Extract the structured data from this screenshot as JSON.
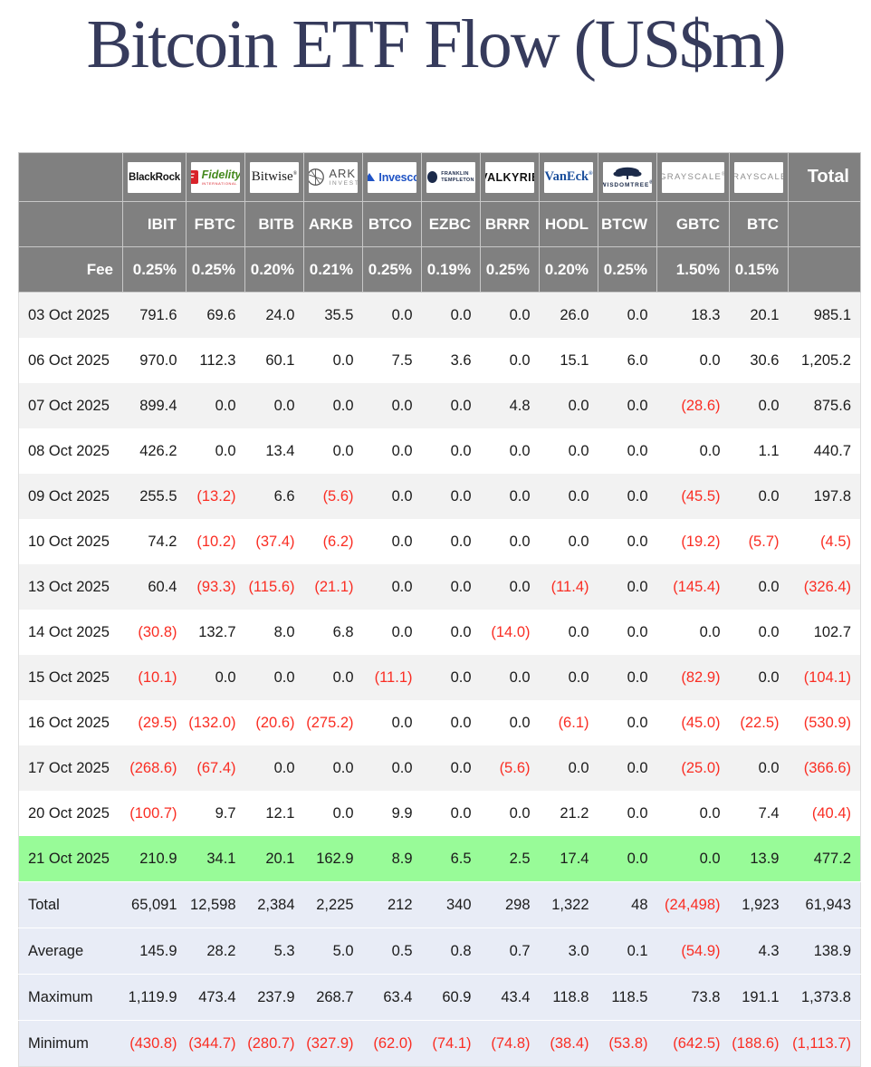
{
  "title": "Bitcoin ETF Flow (US$m)",
  "chart_data": {
    "type": "table",
    "title": "Bitcoin ETF Flow (US$m)",
    "fee_label": "Fee",
    "total_label": "Total",
    "columns": [
      {
        "ticker": "IBIT",
        "fee": "0.25%",
        "provider": "BlackRock",
        "logo": {
          "kind": "blackrock",
          "text": "BlackRock",
          "color": "#151515"
        }
      },
      {
        "ticker": "FBTC",
        "fee": "0.25%",
        "provider": "Fidelity",
        "logo": {
          "kind": "fidelity",
          "icon": "F",
          "icon_color": "#d9222a",
          "text": "Fidelity",
          "text_color": "#458a1e",
          "mark": "™",
          "sub": "INTERNATIONAL",
          "sub_color": "#d9222a"
        }
      },
      {
        "ticker": "BITB",
        "fee": "0.20%",
        "provider": "Bitwise",
        "logo": {
          "kind": "bitwise",
          "text": "Bitwise",
          "mark": "®",
          "color": "#1c1c1c"
        }
      },
      {
        "ticker": "ARKB",
        "fee": "0.21%",
        "provider": "ARK Invest",
        "logo": {
          "kind": "ark",
          "text": "ARK",
          "color": "#4f4f4f",
          "sub": "INVEST",
          "sub_color": "#8a8a8a"
        }
      },
      {
        "ticker": "BTCO",
        "fee": "0.25%",
        "provider": "Invesco",
        "logo": {
          "kind": "invesco",
          "text": "Invesco",
          "color": "#1f53c5"
        }
      },
      {
        "ticker": "EZBC",
        "fee": "0.19%",
        "provider": "Franklin Templeton",
        "logo": {
          "kind": "franklin",
          "lines": [
            "FRANKLIN",
            "TEMPLETON"
          ],
          "color": "#1b2a4a"
        }
      },
      {
        "ticker": "BRRR",
        "fee": "0.25%",
        "provider": "Valkyrie",
        "logo": {
          "kind": "valkyrie",
          "text": "VALKYRIE",
          "color": "#101010"
        }
      },
      {
        "ticker": "HODL",
        "fee": "0.20%",
        "provider": "VanEck",
        "logo": {
          "kind": "vaneck",
          "text": "VanEck",
          "mark": "®",
          "color": "#1b4f9c"
        }
      },
      {
        "ticker": "BTCW",
        "fee": "0.25%",
        "provider": "WisdomTree",
        "logo": {
          "kind": "wisdomtree",
          "text": "WISDOMTREE",
          "mark": "®",
          "color": "#1c2b4a"
        }
      },
      {
        "ticker": "GBTC",
        "fee": "1.50%",
        "provider": "Grayscale",
        "logo": {
          "kind": "grayscale",
          "text": "GRAYSCALE",
          "mark": "®",
          "color": "#8e8e8e"
        }
      },
      {
        "ticker": "BTC",
        "fee": "0.15%",
        "provider": "Grayscale",
        "logo": {
          "kind": "grayscale",
          "text": "GRAYSCALE",
          "mark": "®",
          "color": "#8e8e8e"
        }
      }
    ],
    "rows": [
      {
        "date": "03 Oct 2025",
        "highlight": false,
        "values": [
          "791.6",
          "69.6",
          "24.0",
          "35.5",
          "0.0",
          "0.0",
          "0.0",
          "26.0",
          "0.0",
          "18.3",
          "20.1",
          "985.1"
        ]
      },
      {
        "date": "06 Oct 2025",
        "highlight": false,
        "values": [
          "970.0",
          "112.3",
          "60.1",
          "0.0",
          "7.5",
          "3.6",
          "0.0",
          "15.1",
          "6.0",
          "0.0",
          "30.6",
          "1,205.2"
        ]
      },
      {
        "date": "07 Oct 2025",
        "highlight": false,
        "values": [
          "899.4",
          "0.0",
          "0.0",
          "0.0",
          "0.0",
          "0.0",
          "4.8",
          "0.0",
          "0.0",
          "(28.6)",
          "0.0",
          "875.6"
        ]
      },
      {
        "date": "08 Oct 2025",
        "highlight": false,
        "values": [
          "426.2",
          "0.0",
          "13.4",
          "0.0",
          "0.0",
          "0.0",
          "0.0",
          "0.0",
          "0.0",
          "0.0",
          "1.1",
          "440.7"
        ]
      },
      {
        "date": "09 Oct 2025",
        "highlight": false,
        "values": [
          "255.5",
          "(13.2)",
          "6.6",
          "(5.6)",
          "0.0",
          "0.0",
          "0.0",
          "0.0",
          "0.0",
          "(45.5)",
          "0.0",
          "197.8"
        ]
      },
      {
        "date": "10 Oct 2025",
        "highlight": false,
        "values": [
          "74.2",
          "(10.2)",
          "(37.4)",
          "(6.2)",
          "0.0",
          "0.0",
          "0.0",
          "0.0",
          "0.0",
          "(19.2)",
          "(5.7)",
          "(4.5)"
        ]
      },
      {
        "date": "13 Oct 2025",
        "highlight": false,
        "values": [
          "60.4",
          "(93.3)",
          "(115.6)",
          "(21.1)",
          "0.0",
          "0.0",
          "0.0",
          "(11.4)",
          "0.0",
          "(145.4)",
          "0.0",
          "(326.4)"
        ]
      },
      {
        "date": "14 Oct 2025",
        "highlight": false,
        "values": [
          "(30.8)",
          "132.7",
          "8.0",
          "6.8",
          "0.0",
          "0.0",
          "(14.0)",
          "0.0",
          "0.0",
          "0.0",
          "0.0",
          "102.7"
        ]
      },
      {
        "date": "15 Oct 2025",
        "highlight": false,
        "values": [
          "(10.1)",
          "0.0",
          "0.0",
          "0.0",
          "(11.1)",
          "0.0",
          "0.0",
          "0.0",
          "0.0",
          "(82.9)",
          "0.0",
          "(104.1)"
        ]
      },
      {
        "date": "16 Oct 2025",
        "highlight": false,
        "values": [
          "(29.5)",
          "(132.0)",
          "(20.6)",
          "(275.2)",
          "0.0",
          "0.0",
          "0.0",
          "(6.1)",
          "0.0",
          "(45.0)",
          "(22.5)",
          "(530.9)"
        ]
      },
      {
        "date": "17 Oct 2025",
        "highlight": false,
        "values": [
          "(268.6)",
          "(67.4)",
          "0.0",
          "0.0",
          "0.0",
          "0.0",
          "(5.6)",
          "0.0",
          "0.0",
          "(25.0)",
          "0.0",
          "(366.6)"
        ]
      },
      {
        "date": "20 Oct 2025",
        "highlight": false,
        "values": [
          "(100.7)",
          "9.7",
          "12.1",
          "0.0",
          "9.9",
          "0.0",
          "0.0",
          "21.2",
          "0.0",
          "0.0",
          "7.4",
          "(40.4)"
        ]
      },
      {
        "date": "21 Oct 2025",
        "highlight": true,
        "values": [
          "210.9",
          "34.1",
          "20.1",
          "162.9",
          "8.9",
          "6.5",
          "2.5",
          "17.4",
          "0.0",
          "0.0",
          "13.9",
          "477.2"
        ]
      }
    ],
    "summary_rows": [
      {
        "label": "Total",
        "values": [
          "65,091",
          "12,598",
          "2,384",
          "2,225",
          "212",
          "340",
          "298",
          "1,322",
          "48",
          "(24,498)",
          "1,923",
          "61,943"
        ]
      },
      {
        "label": "Average",
        "values": [
          "145.9",
          "28.2",
          "5.3",
          "5.0",
          "0.5",
          "0.8",
          "0.7",
          "3.0",
          "0.1",
          "(54.9)",
          "4.3",
          "138.9"
        ]
      },
      {
        "label": "Maximum",
        "values": [
          "1,119.9",
          "473.4",
          "237.9",
          "268.7",
          "63.4",
          "60.9",
          "43.4",
          "118.8",
          "118.5",
          "73.8",
          "191.1",
          "1,373.8"
        ]
      },
      {
        "label": "Minimum",
        "values": [
          "(430.8)",
          "(344.7)",
          "(280.7)",
          "(327.9)",
          "(62.0)",
          "(74.1)",
          "(74.8)",
          "(38.4)",
          "(53.8)",
          "(642.5)",
          "(188.6)",
          "(1,113.7)"
        ]
      }
    ],
    "colors": {
      "header_bg": "#808080",
      "header_text": "#ffffff",
      "row_alt_bg": "#f2f2f2",
      "highlight_row_bg": "#98fb98",
      "summary_row_bg": "#e8ecf6",
      "negative_value": "#fa2d23",
      "positive_value": "#1b1b1b",
      "title_color": "#363b5c"
    }
  }
}
